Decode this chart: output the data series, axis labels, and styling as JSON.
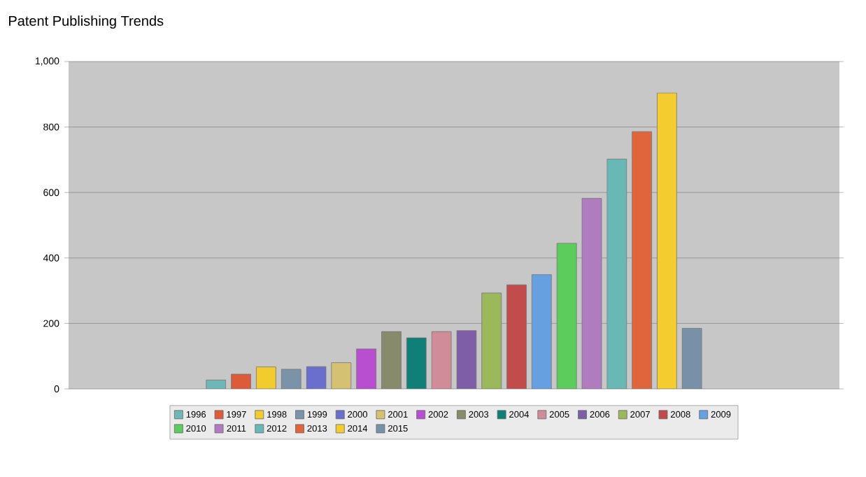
{
  "chart_data": {
    "type": "bar",
    "title": "Patent Publishing Trends",
    "categories": [
      null
    ],
    "series": [
      {
        "name": "1996",
        "color": "#6fb7b6",
        "values": [
          27
        ]
      },
      {
        "name": "1997",
        "color": "#dc5b3a",
        "values": [
          45
        ]
      },
      {
        "name": "1998",
        "color": "#f2cb2f",
        "values": [
          67
        ]
      },
      {
        "name": "1999",
        "color": "#7b93a8",
        "values": [
          60
        ]
      },
      {
        "name": "2000",
        "color": "#6a6fce",
        "values": [
          68
        ]
      },
      {
        "name": "2001",
        "color": "#d4c171",
        "values": [
          80
        ]
      },
      {
        "name": "2002",
        "color": "#b84fd0",
        "values": [
          122
        ]
      },
      {
        "name": "2003",
        "color": "#888a6c",
        "values": [
          175
        ]
      },
      {
        "name": "2004",
        "color": "#0f7f78",
        "values": [
          156
        ]
      },
      {
        "name": "2005",
        "color": "#d08c98",
        "values": [
          175
        ]
      },
      {
        "name": "2006",
        "color": "#7f5ea8",
        "values": [
          178
        ]
      },
      {
        "name": "2007",
        "color": "#9bb85a",
        "values": [
          293
        ]
      },
      {
        "name": "2008",
        "color": "#c24b4b",
        "values": [
          318
        ]
      },
      {
        "name": "2009",
        "color": "#66a0e0",
        "values": [
          349
        ]
      },
      {
        "name": "2010",
        "color": "#5ccc5c",
        "values": [
          445
        ]
      },
      {
        "name": "2011",
        "color": "#b07cc0",
        "values": [
          582
        ]
      },
      {
        "name": "2012",
        "color": "#68b9b6",
        "values": [
          702
        ]
      },
      {
        "name": "2013",
        "color": "#e0643c",
        "values": [
          786
        ]
      },
      {
        "name": "2014",
        "color": "#f4cc30",
        "values": [
          904
        ]
      },
      {
        "name": "2015",
        "color": "#7890a8",
        "values": [
          185
        ]
      }
    ],
    "ylim": [
      0,
      1000
    ],
    "yticks": [
      0,
      200,
      400,
      600,
      800,
      {
        "value": 1000,
        "label": "1,000"
      }
    ],
    "grid": "y",
    "legend": "bottom"
  }
}
